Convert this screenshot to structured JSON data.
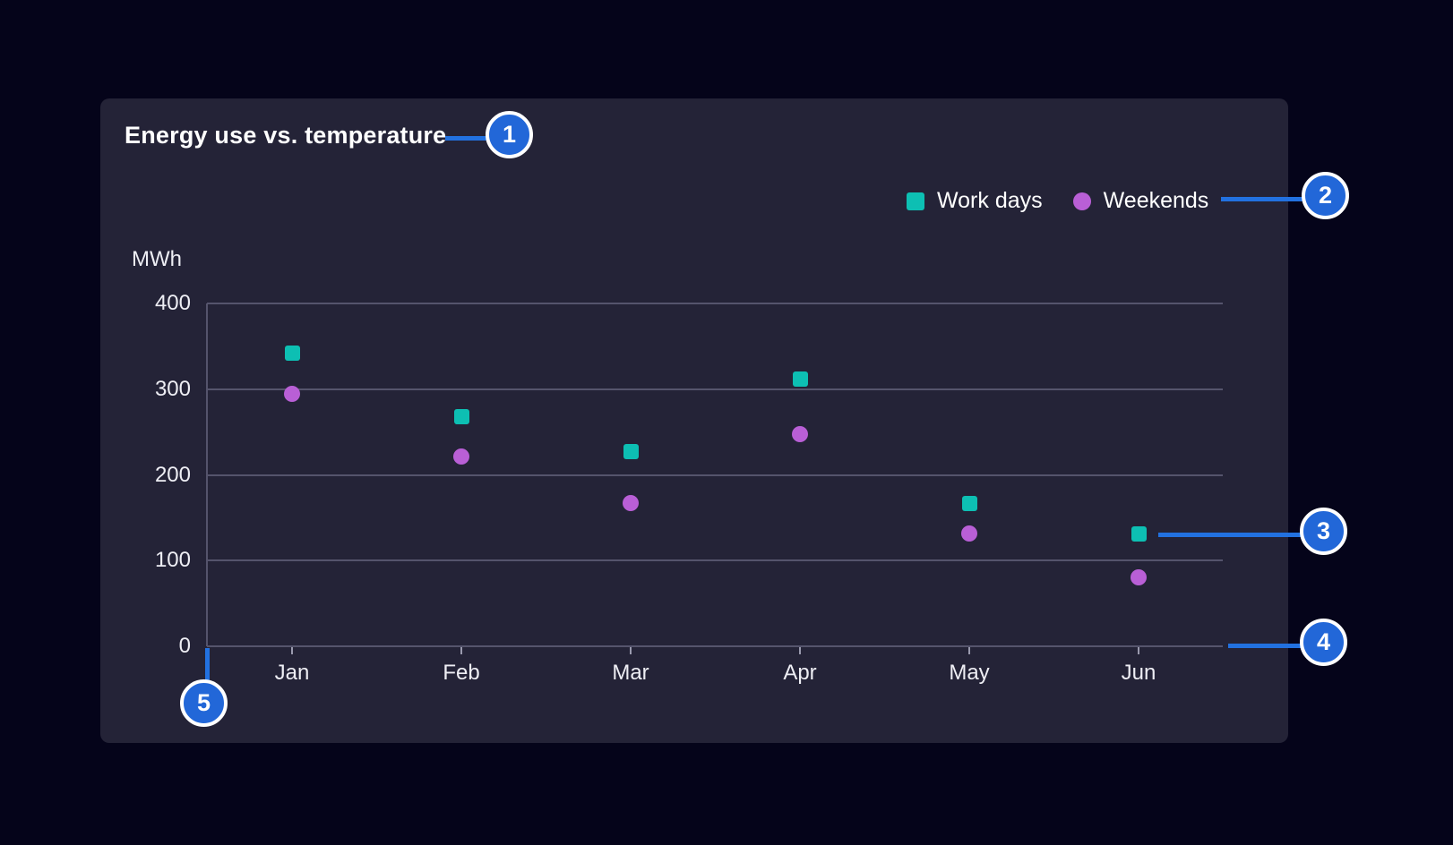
{
  "page": {
    "background": "#05041a"
  },
  "card": {
    "background": "#242337"
  },
  "chart_data": {
    "type": "scatter",
    "title": "Energy use vs. temperature",
    "xlabel": "",
    "ylabel": "MWh",
    "categories": [
      "Jan",
      "Feb",
      "Mar",
      "Apr",
      "May",
      "Jun"
    ],
    "series": [
      {
        "name": "Work days",
        "marker": "square",
        "color": "#0dbfb3",
        "values": [
          342,
          268,
          227,
          312,
          167,
          131
        ]
      },
      {
        "name": "Weekends",
        "marker": "circle",
        "color": "#b95fd6",
        "values": [
          295,
          221,
          167,
          248,
          132,
          80
        ]
      }
    ],
    "ylim": [
      0,
      400
    ],
    "yticks": [
      0,
      100,
      200,
      300,
      400
    ],
    "grid": true,
    "legend_position": "top-right",
    "axis_color": "#55546c",
    "tick_color": "#9a9aae",
    "label_color": "#eeeef4"
  },
  "callouts": {
    "badge_color": "#2267d8",
    "line_color": "#2271e0",
    "items": [
      {
        "number": "1"
      },
      {
        "number": "2"
      },
      {
        "number": "3"
      },
      {
        "number": "4"
      },
      {
        "number": "5"
      }
    ]
  }
}
